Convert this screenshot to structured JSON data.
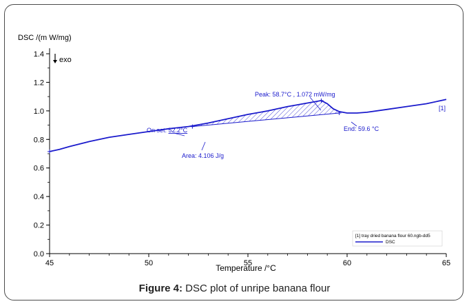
{
  "caption": {
    "bold": "Figure 4:",
    "rest": " DSC plot of unripe banana flour"
  },
  "chart_data": {
    "type": "line",
    "ylabel": "DSC  /(m W/mg)",
    "xlabel": "Temperature /°C",
    "exo_label": "exo",
    "xlim": [
      45,
      65
    ],
    "ylim": [
      0.0,
      1.4
    ],
    "x_ticks": [
      45,
      50,
      55,
      60,
      65
    ],
    "y_ticks": [
      0.0,
      0.2,
      0.4,
      0.6,
      0.8,
      1.0,
      1.2,
      1.4
    ],
    "y_tick_labels": [
      "0.0",
      "0.2",
      "0.4",
      "0.6",
      "0.8",
      "1.0",
      "1.2",
      "1.4"
    ],
    "grid": false,
    "series": [
      {
        "name": "DSC",
        "color": "#1a1acc",
        "x": [
          45.0,
          45.5,
          46.0,
          47.0,
          48.0,
          49.0,
          50.0,
          51.0,
          52.0,
          52.2,
          53.0,
          54.0,
          55.0,
          56.0,
          57.0,
          58.0,
          58.7,
          59.0,
          59.3,
          59.6,
          60.0,
          60.5,
          61.0,
          62.0,
          63.0,
          64.0,
          65.0
        ],
        "y": [
          0.715,
          0.73,
          0.75,
          0.785,
          0.815,
          0.835,
          0.855,
          0.875,
          0.89,
          0.895,
          0.915,
          0.945,
          0.975,
          1.0,
          1.03,
          1.055,
          1.072,
          1.05,
          1.015,
          0.995,
          0.985,
          0.985,
          0.99,
          1.01,
          1.03,
          1.05,
          1.08
        ]
      }
    ],
    "baseline": {
      "x": [
        52.2,
        59.6
      ],
      "y": [
        0.89,
        0.985
      ]
    },
    "annotations": {
      "marker": "[1]",
      "peak": "Peak: 58.7°C , 1.072 mW/mg",
      "onset_prefix": "On set: ",
      "onset_value": "52.2°C",
      "end": "End: 59.6 °C",
      "area": "Area: 4.106 J/g"
    },
    "legend": {
      "position": "bottom-right",
      "line1": "[1] tray dried banana flour 60.ngb-dd5",
      "line2": "DSC"
    }
  }
}
